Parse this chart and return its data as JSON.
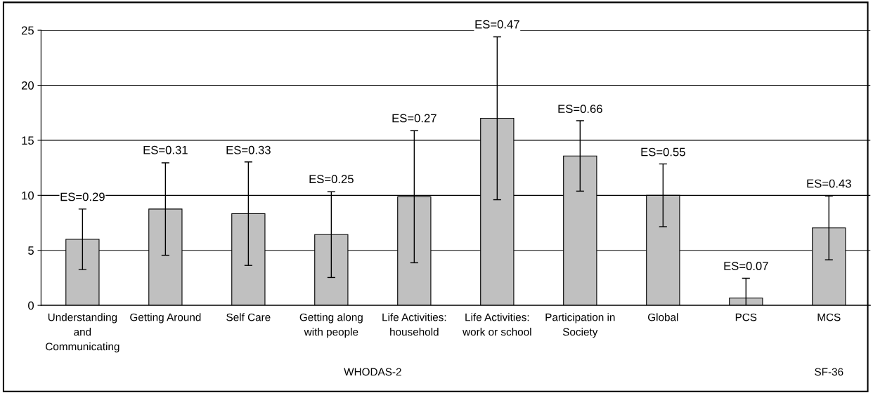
{
  "chart_data": {
    "type": "bar",
    "categories": [
      "Understanding\nand\nCommunicating",
      "Getting Around",
      "Self Care",
      "Getting along\nwith people",
      "Life Activities:\nhousehold",
      "Life Activities:\nwork or school",
      "Participation in\nSociety",
      "Global",
      "PCS",
      "MCS"
    ],
    "values": [
      6.0,
      8.75,
      8.33,
      6.43,
      9.87,
      17.0,
      13.58,
      10.0,
      0.66,
      7.04
    ],
    "errors": [
      2.75,
      4.2,
      4.7,
      3.9,
      6.0,
      7.4,
      3.2,
      2.85,
      1.8,
      2.9
    ],
    "color": "#c0c0c0",
    "ylim": [
      0,
      25
    ],
    "yticks": [
      0,
      5,
      10,
      15,
      20,
      25
    ],
    "grid": "y",
    "annotations": [
      {
        "text": "ES=0.29",
        "x": "Understanding\nand\nCommunicating",
        "y": 8.75
      },
      {
        "text": "ES=0.31",
        "x": "Getting Around",
        "y": 13.0
      },
      {
        "text": "ES=0.33",
        "x": "Self Care",
        "y": 13.0
      },
      {
        "text": "ES=0.25",
        "x": "Getting along\nwith people",
        "y": 10.36
      },
      {
        "text": "ES=0.27",
        "x": "Life Activities:\nhousehold",
        "y": 15.89
      },
      {
        "text": "ES=0.47",
        "x": "Life Activities:\nwork or school",
        "y": 24.42
      },
      {
        "text": "ES=0.66",
        "x": "Participation in\nSociety",
        "y": 16.74
      },
      {
        "text": "ES=0.55",
        "x": "Global",
        "y": 12.82
      },
      {
        "text": "ES=0.07",
        "x": "PCS",
        "y": 2.46
      },
      {
        "text": "ES=0.43",
        "x": "MCS",
        "y": 9.95
      },
      "WHODAS-2",
      "SF-36"
    ]
  }
}
